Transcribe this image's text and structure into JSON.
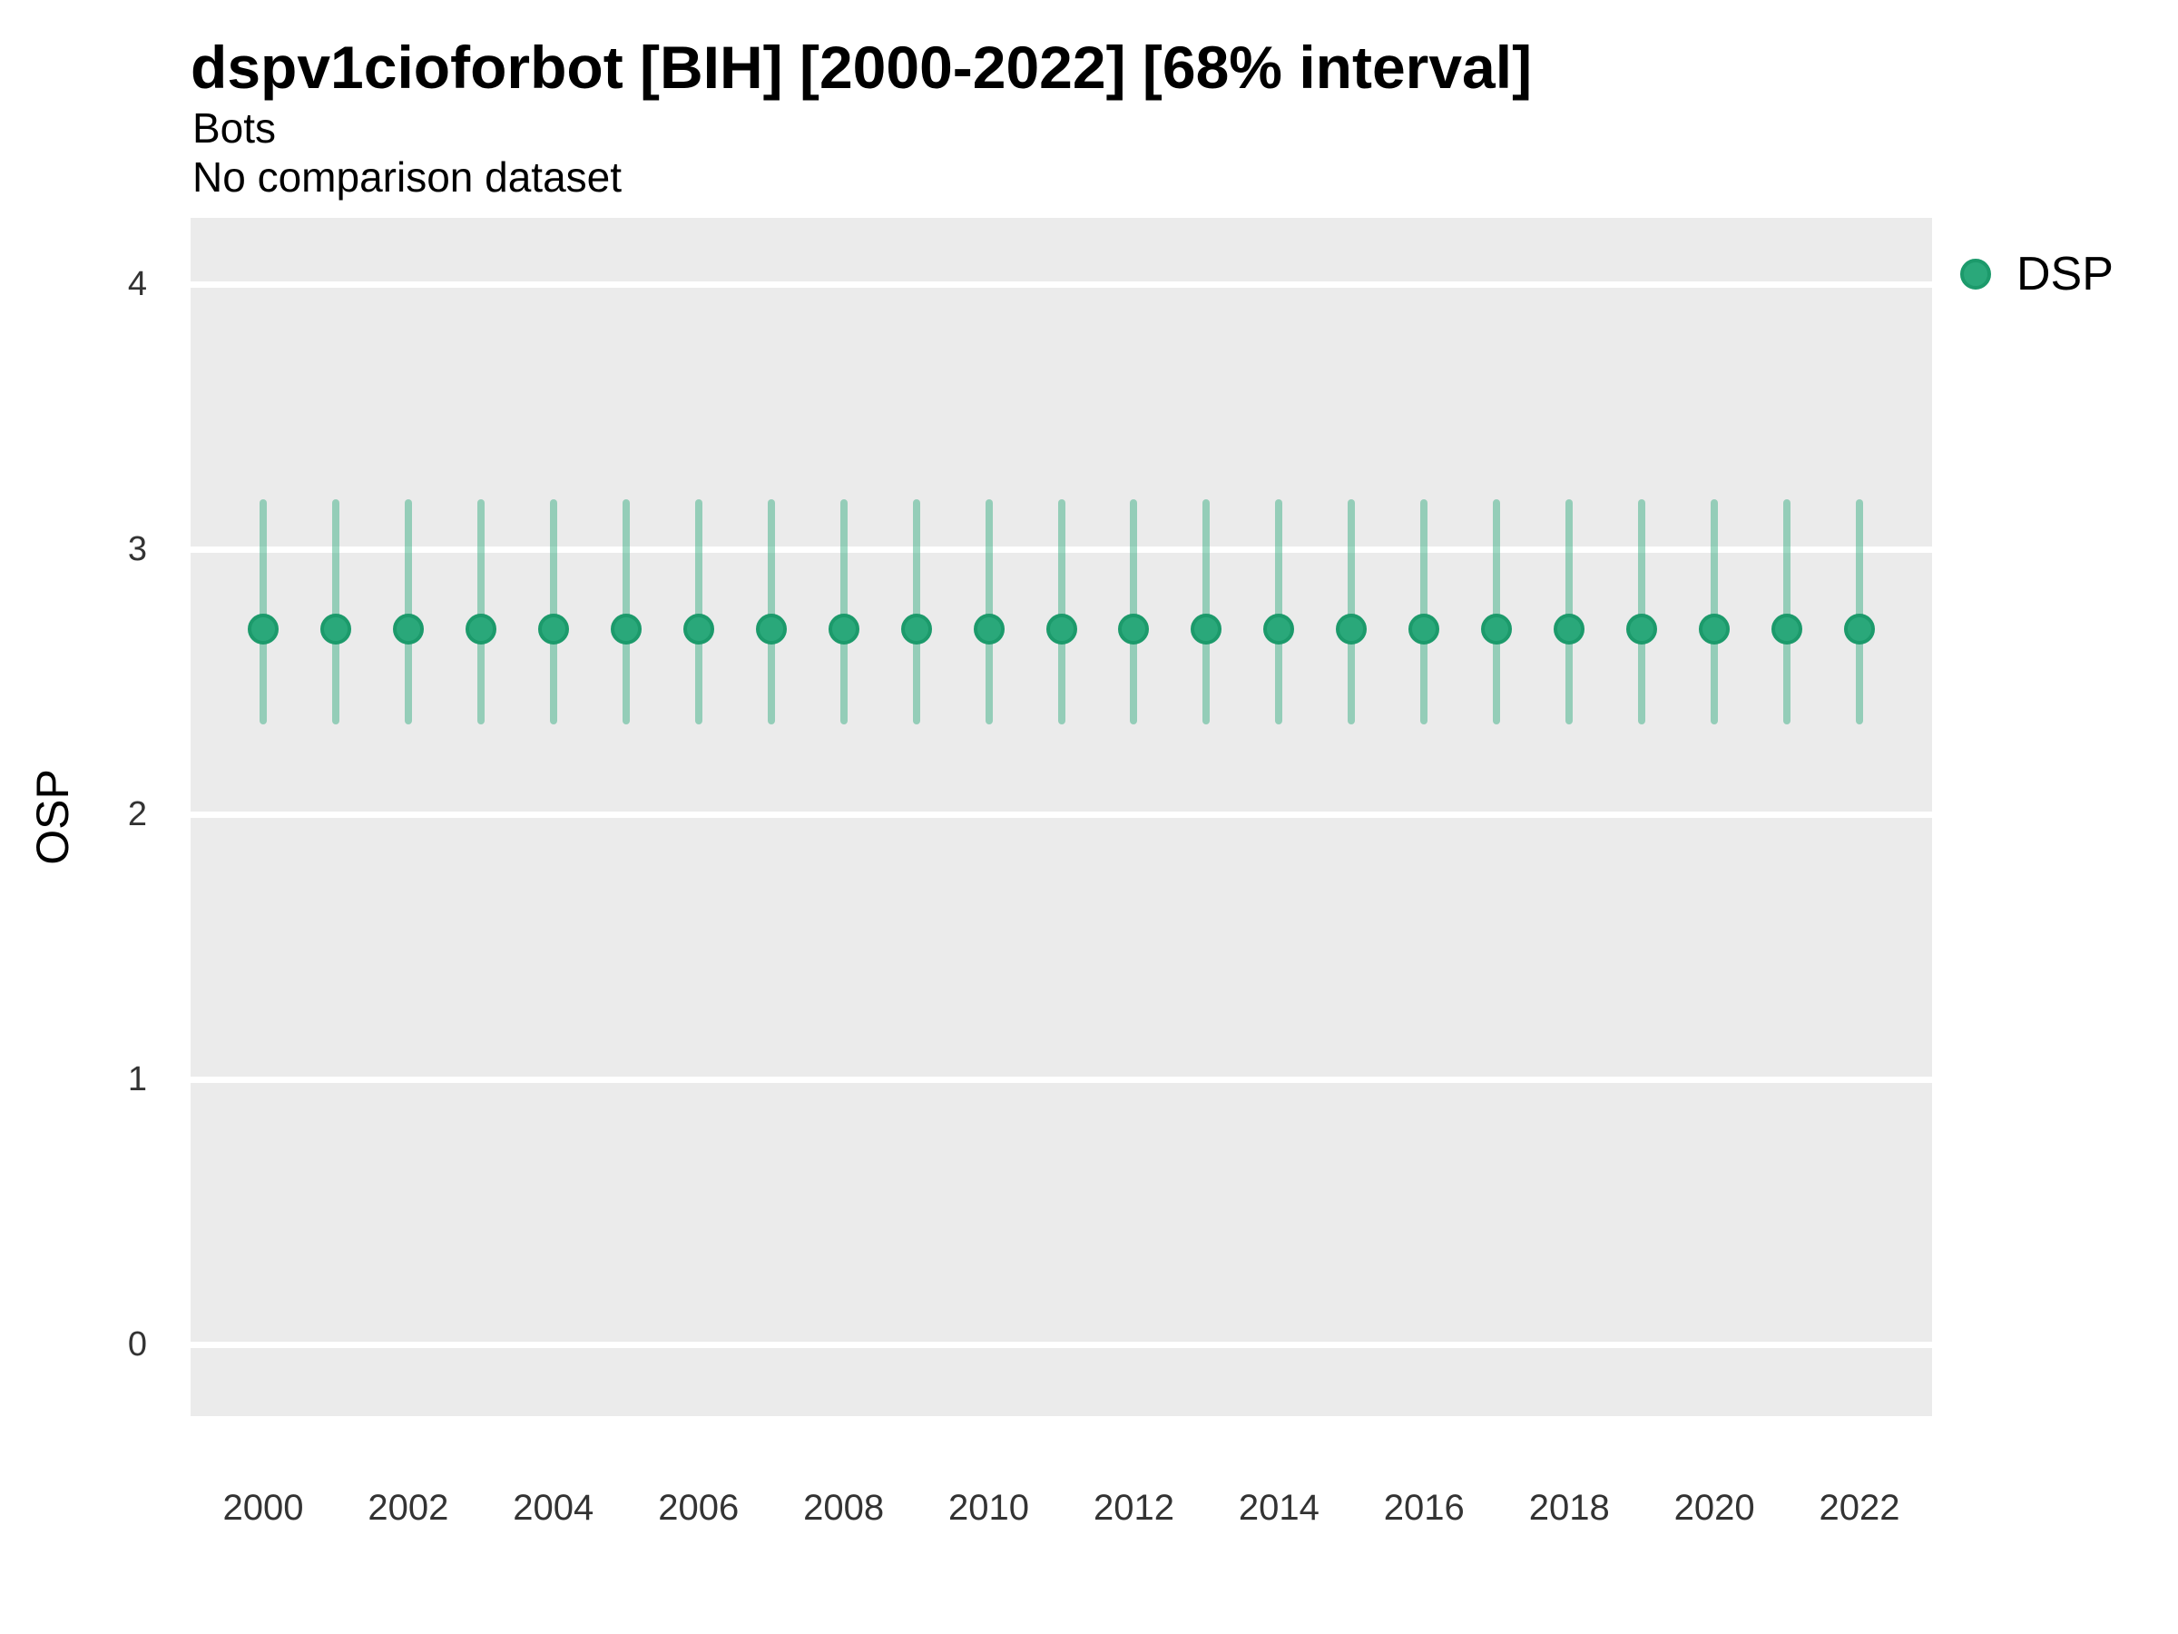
{
  "chart_data": {
    "type": "scatter",
    "variant": "pointrange",
    "title": "dspv1cioforbot [BIH] [2000-2022] [68% interval]",
    "subtitle": "Bots",
    "caption": "No comparison dataset",
    "xlabel": "",
    "ylabel": "OSP",
    "legend_position": "right",
    "legend_entries": [
      "DSP"
    ],
    "x": [
      2000,
      2001,
      2002,
      2003,
      2004,
      2005,
      2006,
      2007,
      2008,
      2009,
      2010,
      2011,
      2012,
      2013,
      2014,
      2015,
      2016,
      2017,
      2018,
      2019,
      2020,
      2021,
      2022
    ],
    "series": [
      {
        "name": "DSP",
        "values": [
          2.7,
          2.7,
          2.7,
          2.7,
          2.7,
          2.7,
          2.7,
          2.7,
          2.7,
          2.7,
          2.7,
          2.7,
          2.7,
          2.7,
          2.7,
          2.7,
          2.7,
          2.7,
          2.7,
          2.7,
          2.7,
          2.7,
          2.7
        ],
        "lower": [
          2.34,
          2.34,
          2.34,
          2.34,
          2.34,
          2.34,
          2.34,
          2.34,
          2.34,
          2.34,
          2.34,
          2.34,
          2.34,
          2.34,
          2.34,
          2.34,
          2.34,
          2.34,
          2.34,
          2.34,
          2.34,
          2.34,
          2.34
        ],
        "upper": [
          3.19,
          3.19,
          3.19,
          3.19,
          3.19,
          3.19,
          3.19,
          3.19,
          3.19,
          3.19,
          3.19,
          3.19,
          3.19,
          3.19,
          3.19,
          3.19,
          3.19,
          3.19,
          3.19,
          3.19,
          3.19,
          3.19,
          3.19
        ]
      }
    ],
    "interval_level": "68%",
    "ylim": [
      -0.27,
      4.25
    ],
    "xlim": [
      1999,
      2023
    ],
    "yticks": [
      0,
      1,
      2,
      3,
      4
    ],
    "xticks": [
      2000,
      2002,
      2004,
      2006,
      2008,
      2010,
      2012,
      2014,
      2016,
      2018,
      2020,
      2022
    ],
    "grid": true,
    "colors": {
      "point_fill": "#2AA87A",
      "point_stroke": "#1C9A6B",
      "interval": "#2AA87A",
      "interval_opacity": 0.45,
      "panel_background": "#EBEBEB",
      "gridline": "#FFFFFF"
    }
  }
}
